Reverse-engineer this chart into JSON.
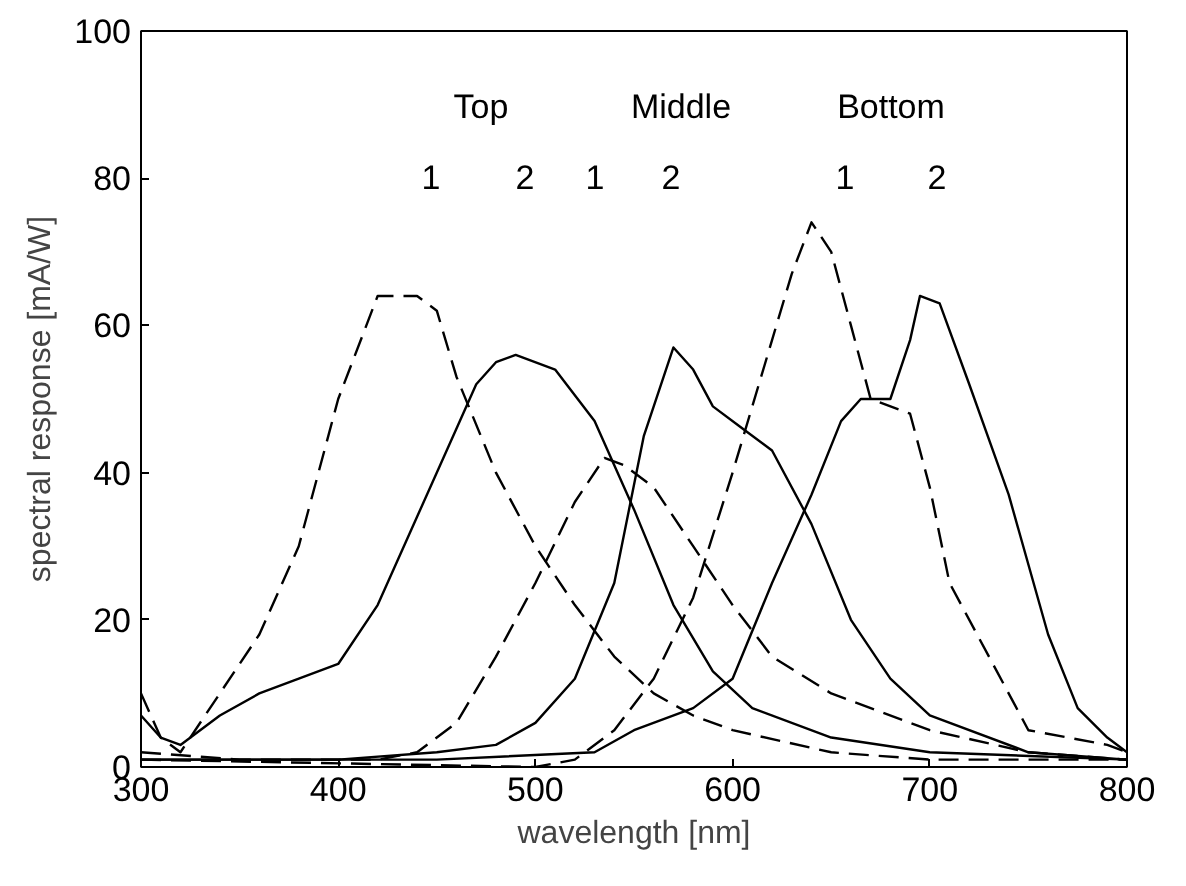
{
  "chart_data": {
    "type": "line",
    "xlabel": "wavelength [nm]",
    "ylabel": "spectral response [mA/W]",
    "xlim": [
      300,
      800
    ],
    "ylim": [
      0,
      100
    ],
    "xticks": [
      300,
      400,
      500,
      600,
      700,
      800
    ],
    "yticks": [
      0,
      20,
      40,
      60,
      80,
      100
    ],
    "grid": false,
    "marker": "none",
    "series": [
      {
        "color": "#000000",
        "line_style": "dashed",
        "x": [
          300,
          310,
          320,
          340,
          360,
          380,
          400,
          420,
          440,
          450,
          460,
          480,
          500,
          520,
          540,
          560,
          580,
          600,
          650,
          700,
          750,
          800
        ],
        "values": [
          10,
          4,
          2,
          10,
          18,
          30,
          50,
          64,
          64,
          62,
          53,
          40,
          30,
          22,
          15,
          10,
          7,
          5,
          2,
          1,
          1,
          1
        ]
      },
      {
        "color": "#000000",
        "line_style": "solid",
        "x": [
          300,
          310,
          320,
          340,
          360,
          380,
          400,
          420,
          440,
          460,
          470,
          480,
          490,
          510,
          530,
          550,
          570,
          590,
          610,
          650,
          700,
          800
        ],
        "values": [
          7,
          4,
          3,
          7,
          10,
          12,
          14,
          22,
          34,
          46,
          52,
          55,
          56,
          54,
          47,
          35,
          22,
          13,
          8,
          4,
          2,
          1
        ]
      },
      {
        "color": "#000000",
        "line_style": "dashed",
        "x": [
          300,
          350,
          420,
          440,
          460,
          480,
          500,
          520,
          535,
          545,
          560,
          580,
          600,
          620,
          650,
          700,
          750,
          800
        ],
        "values": [
          2,
          1,
          1,
          2,
          6,
          15,
          25,
          36,
          42,
          41,
          38,
          30,
          22,
          15,
          10,
          5,
          2,
          1
        ]
      },
      {
        "color": "#000000",
        "line_style": "solid",
        "x": [
          300,
          400,
          450,
          480,
          500,
          520,
          540,
          555,
          565,
          570,
          580,
          590,
          605,
          620,
          640,
          660,
          680,
          700,
          750,
          800
        ],
        "values": [
          1,
          1,
          2,
          3,
          6,
          12,
          25,
          45,
          53,
          57,
          54,
          49,
          46,
          43,
          33,
          20,
          12,
          7,
          2,
          1
        ]
      },
      {
        "color": "#000000",
        "line_style": "dashed",
        "x": [
          300,
          500,
          520,
          540,
          560,
          580,
          600,
          620,
          630,
          640,
          650,
          660,
          670,
          690,
          700,
          710,
          730,
          750,
          790,
          800
        ],
        "values": [
          1,
          0,
          1,
          5,
          12,
          23,
          40,
          58,
          67,
          74,
          70,
          60,
          50,
          48,
          38,
          25,
          15,
          5,
          3,
          2
        ]
      },
      {
        "color": "#000000",
        "line_style": "solid",
        "x": [
          300,
          450,
          530,
          550,
          580,
          600,
          620,
          640,
          655,
          665,
          680,
          690,
          695,
          705,
          720,
          740,
          760,
          775,
          790,
          800
        ],
        "values": [
          1,
          1,
          2,
          5,
          8,
          12,
          25,
          37,
          47,
          50,
          50,
          58,
          64,
          63,
          52,
          37,
          18,
          8,
          4,
          2
        ]
      }
    ],
    "annotations": [
      "Top",
      "Middle",
      "Bottom",
      "1",
      "2",
      "1",
      "2",
      "1",
      "2"
    ]
  }
}
